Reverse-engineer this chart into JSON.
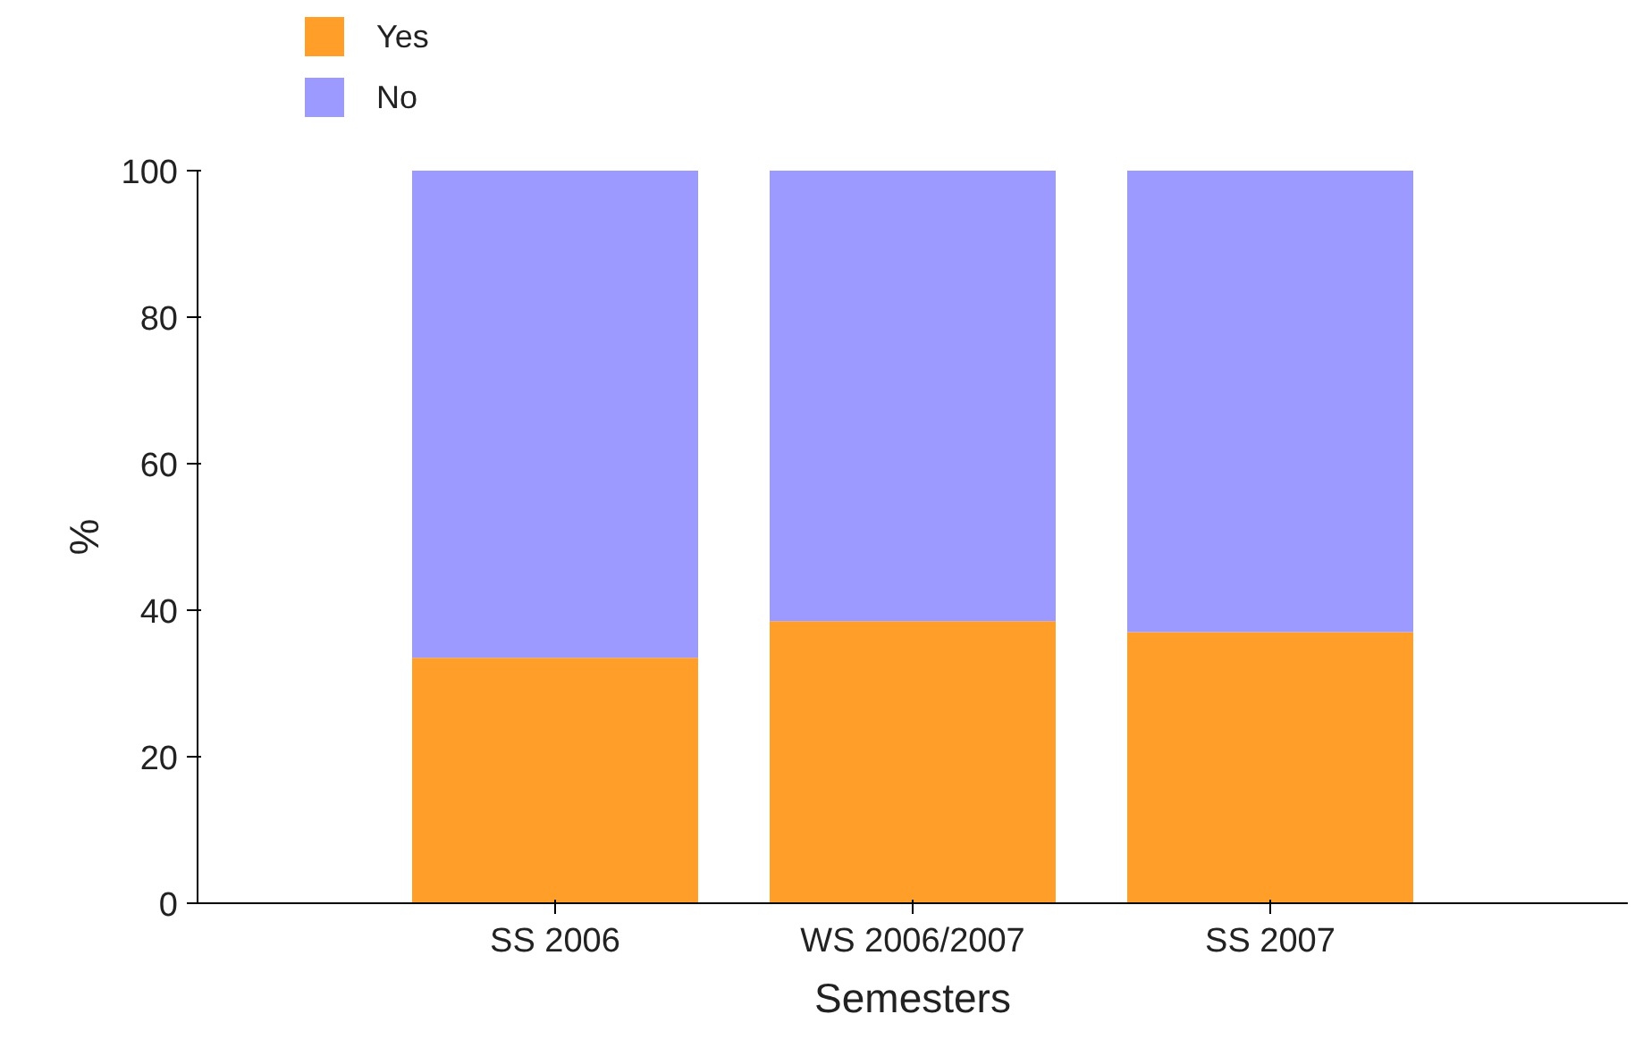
{
  "chart_data": {
    "type": "bar",
    "stacked": true,
    "categories": [
      "SS 2006",
      "WS 2006/2007",
      "SS 2007"
    ],
    "series": [
      {
        "name": "Yes",
        "color": "#ff9f29",
        "values": [
          33.5,
          38.5,
          37
        ]
      },
      {
        "name": "No",
        "color": "#9c99ff",
        "values": [
          66.5,
          61.5,
          63
        ]
      }
    ],
    "xlabel": "Semesters",
    "ylabel": "%",
    "ylim": [
      0,
      100
    ],
    "yticks": [
      0,
      20,
      40,
      60,
      80,
      100
    ],
    "grid": false,
    "legend": "top left"
  }
}
